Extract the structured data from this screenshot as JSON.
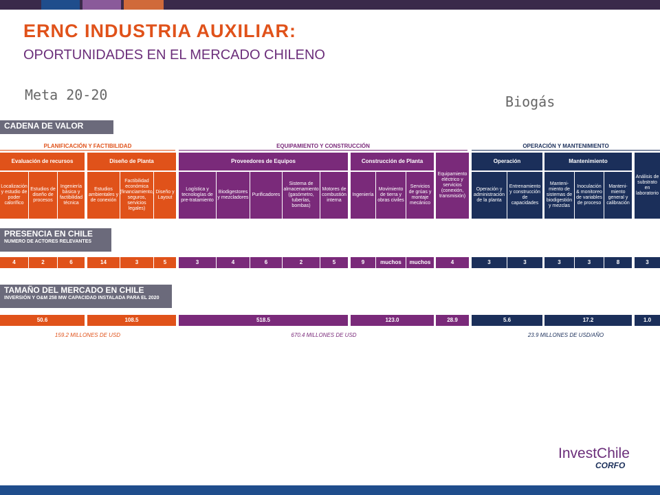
{
  "header": {
    "title": "ERNC  INDUSTRIA  AUXILIAR:",
    "subtitle": "OPORTUNIDADES EN EL MERCADO CHILENO",
    "meta": "Meta 20-20",
    "tech": "Biogás"
  },
  "colors": {
    "orange": "#e0521a",
    "purple": "#7a2a7a",
    "navy": "#1b2f5a",
    "gray": "#6b6a7b"
  },
  "cadena": {
    "label": "CADENA DE VALOR",
    "categories": [
      "PLANIFICACIÓN Y FACTIBILIDAD",
      "EQUIPAMIENTO Y CONSTRUCCIÓN",
      "OPERACIÓN Y MANTENIMIENTO"
    ],
    "groups": [
      "Evaluación de recursos",
      "Diseño de Planta",
      "Proveedores de Equipos",
      "Construcción de Planta",
      "Equipamiento eléctrico y servicios (conexión, transmisión)",
      "Operación",
      "Mantenimiento",
      "Análisis de substrato en laboratorio"
    ],
    "items": [
      "Localización y estudio de poder calorífico",
      "Estudios de diseño de procesos",
      "Ingeniería básica y factibilidad técnica",
      "Estudios ambientales y de conexión",
      "Factibilidad económica (financiamiento, seguros, servicios legales)",
      "Diseño y Layout",
      "Logística y tecnologías de pre-tratamiento",
      "Biodigestores y mezcladores",
      "Purificadores",
      "Sistema de almacenamiento (gasómetro, tuberías, bombas)",
      "Motores de combustión interna",
      "Ingeniería",
      "Movimiento de tierra y obras civiles",
      "Servicios de grúas y montaje mecánico",
      "Operación y administración de la planta",
      "Entrenamiento y construcción de capacidades",
      "Manteni-miento de sistemas de biodigestión y mezclas",
      "Inoculación & monitoreo de variables de proceso",
      "Manteni-miento general y calibración"
    ]
  },
  "presencia": {
    "label": "PRESENCIA EN CHILE",
    "sub": "NUMERO DE ACTORES RELEVANTES",
    "values": [
      "4",
      "2",
      "6",
      "14",
      "3",
      "5",
      "3",
      "4",
      "6",
      "2",
      "5",
      "9",
      "muchos",
      "muchos",
      "4",
      "3",
      "3",
      "3",
      "3",
      "8",
      "3"
    ]
  },
  "mercado": {
    "label": "TAMAÑO DEL MERCADO EN CHILE",
    "sub": "INVERSIÓN Y O&M 258 MW CAPACIDAD INSTALADA PARA EL 2020",
    "values": [
      "50.6",
      "108.5",
      "518.5",
      "123.0",
      "28.9",
      "5.6",
      "17.2",
      "1.0"
    ],
    "totals": [
      "159.2 MILLONES DE USD",
      "670.4 MILLONES DE USD",
      "23.9 MILLONES DE USD/AÑO"
    ]
  },
  "logo": {
    "name": "InvestChile",
    "sub": "CORFO"
  }
}
